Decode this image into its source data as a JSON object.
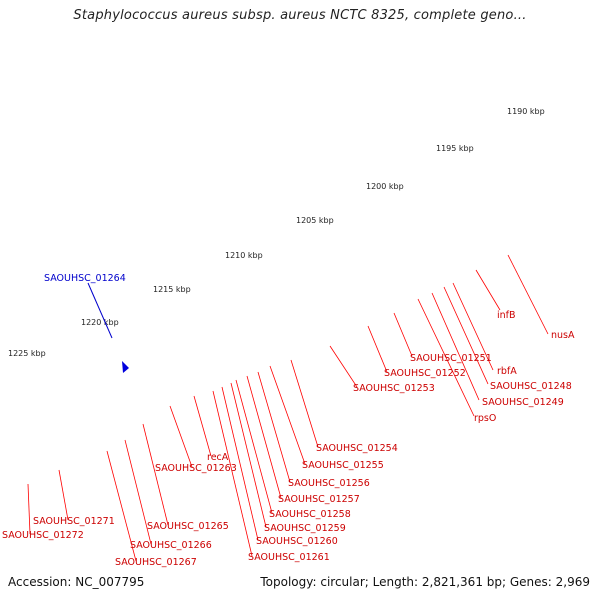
{
  "header": {
    "title": "Staphylococcus aureus subsp. aureus NCTC 8325, complete geno..."
  },
  "footer": {
    "accession": "Accession: NC_007795",
    "summary": "Topology: circular; Length: 2,821,361 bp; Genes: 2,969"
  },
  "ruler": {
    "labels": [
      "1190 kbp",
      "1195 kbp",
      "1200 kbp",
      "1205 kbp",
      "1210 kbp",
      "1215 kbp",
      "1220 kbp",
      "1225 kbp"
    ]
  },
  "selected_gene": {
    "label": "SAOUHSC_01264",
    "color": "#0000cc"
  },
  "gene_labels": [
    "nusA",
    "infB",
    "rbfA",
    "SAOUHSC_01248",
    "SAOUHSC_01249",
    "rpsO",
    "SAOUHSC_01251",
    "SAOUHSC_01252",
    "SAOUHSC_01253",
    "SAOUHSC_01254",
    "SAOUHSC_01255",
    "SAOUHSC_01256",
    "SAOUHSC_01257",
    "SAOUHSC_01258",
    "SAOUHSC_01259",
    "SAOUHSC_01260",
    "SAOUHSC_01261",
    "recA",
    "SAOUHSC_01263",
    "SAOUHSC_01265",
    "SAOUHSC_01266",
    "SAOUHSC_01267",
    "SAOUHSC_01271",
    "SAOUHSC_01272"
  ],
  "colors": {
    "backbone": "#888888",
    "gene_forward": "#ff0000",
    "label_line": "#ff0000",
    "label_text": "#cc0000",
    "tick_green": "#228822",
    "cog_pink": "#ff3399",
    "cog_cyan": "#00e5ee",
    "cog_orange": "#ff9900",
    "cog_yellow": "#eeee99",
    "cog_blue": "#0000dd",
    "cog_purple": "#6655bb"
  }
}
